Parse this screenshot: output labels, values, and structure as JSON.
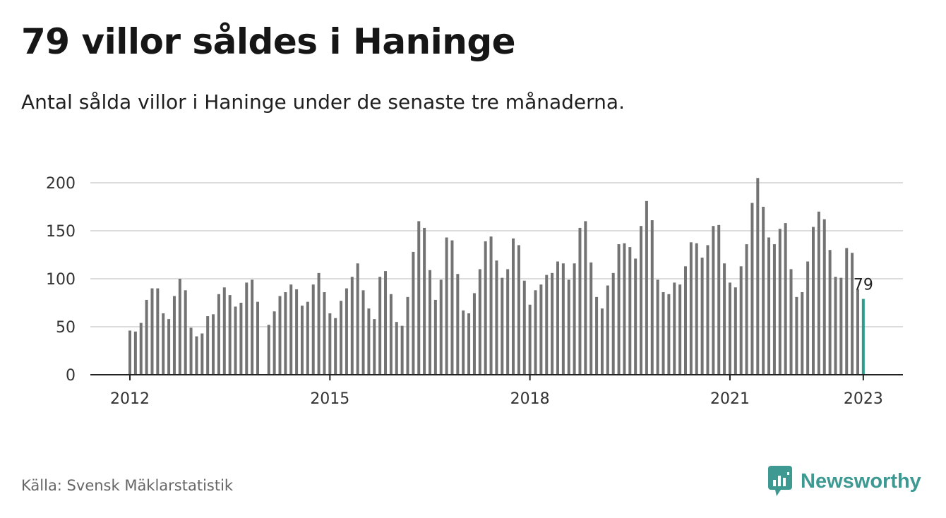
{
  "title": "79 villor såldes i Haninge",
  "subtitle": "Antal sålda villor i Haninge under de senaste tre månaderna.",
  "source": "Källa: Svensk Mäklarstatistik",
  "brand": "Newsworthy",
  "colors": {
    "bar": "#737373",
    "highlight": "#2a9d8f",
    "grid": "#dddddd",
    "brand": "#3d9992"
  },
  "chart_data": {
    "type": "bar",
    "title": "79 villor såldes i Haninge",
    "subtitle": "Antal sålda villor i Haninge under de senaste tre månaderna.",
    "xlabel": "",
    "ylabel": "",
    "ylim": [
      0,
      200
    ],
    "yticks": [
      0,
      50,
      100,
      150,
      200
    ],
    "xticks": [
      "2012",
      "2015",
      "2018",
      "2021",
      "2023"
    ],
    "grid": true,
    "start_month": "2012-01",
    "frequency": "monthly",
    "highlight": {
      "month": "2023-01",
      "value": 79,
      "label": "79"
    },
    "values": [
      46,
      45,
      54,
      78,
      90,
      90,
      64,
      58,
      82,
      100,
      88,
      49,
      40,
      43,
      61,
      63,
      84,
      91,
      83,
      71,
      75,
      96,
      99,
      76,
      null,
      52,
      66,
      82,
      86,
      94,
      89,
      72,
      76,
      94,
      106,
      86,
      64,
      59,
      77,
      90,
      102,
      116,
      88,
      69,
      58,
      102,
      108,
      84,
      55,
      51,
      81,
      128,
      160,
      153,
      109,
      78,
      99,
      143,
      140,
      105,
      67,
      64,
      85,
      110,
      139,
      144,
      119,
      101,
      110,
      142,
      135,
      98,
      73,
      88,
      94,
      104,
      106,
      118,
      116,
      99,
      116,
      153,
      160,
      117,
      81,
      69,
      93,
      106,
      136,
      137,
      133,
      121,
      155,
      181,
      161,
      99,
      86,
      84,
      96,
      94,
      113,
      138,
      137,
      122,
      135,
      155,
      156,
      116,
      96,
      91,
      113,
      136,
      179,
      205,
      175,
      143,
      136,
      152,
      158,
      110,
      81,
      86,
      118,
      154,
      170,
      162,
      130,
      102,
      101,
      132,
      127,
      89,
      79
    ]
  }
}
